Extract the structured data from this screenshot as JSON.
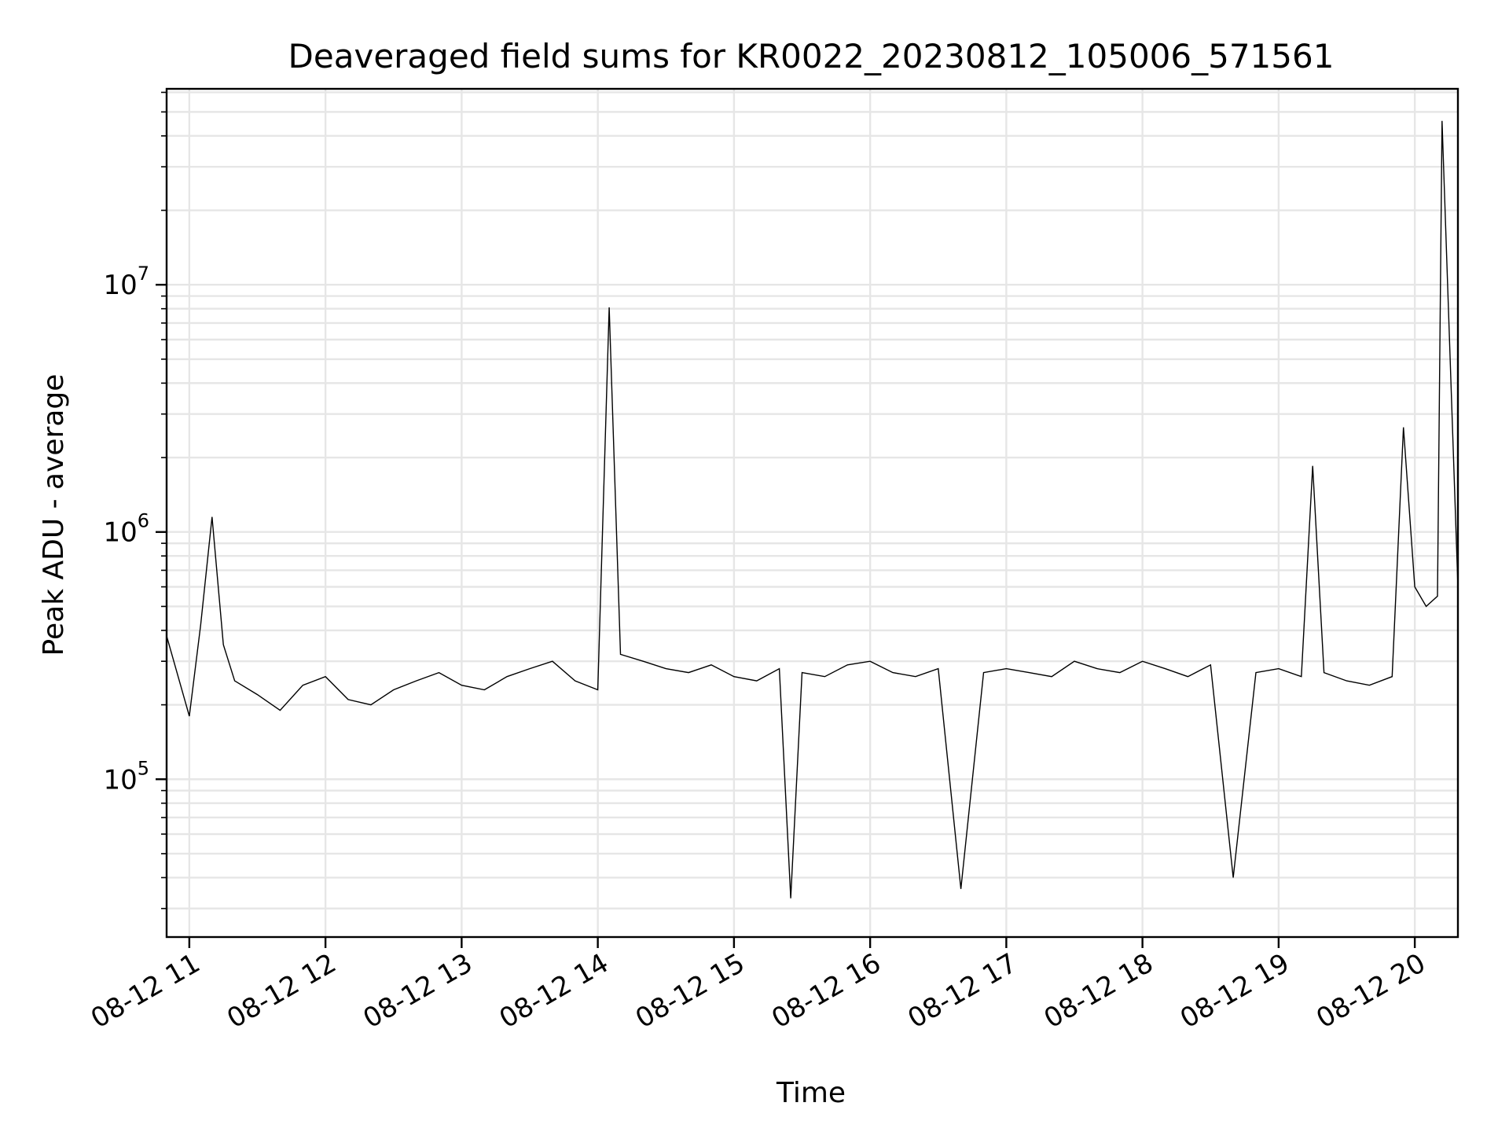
{
  "chart_data": {
    "type": "line",
    "title": "Deaveraged field sums for KR0022_20230812_105006_571561",
    "xlabel": "Time",
    "ylabel": "Peak ADU - average",
    "yscale": "log",
    "ylim": [
      23000,
      62000000
    ],
    "xlim": [
      "2023-08-12 10:50",
      "2023-08-12 20:19"
    ],
    "grid": true,
    "line_color": "#000000",
    "x_ticks": [
      {
        "label": "08-12 11",
        "time": "2023-08-12 11:00"
      },
      {
        "label": "08-12 12",
        "time": "2023-08-12 12:00"
      },
      {
        "label": "08-12 13",
        "time": "2023-08-12 13:00"
      },
      {
        "label": "08-12 14",
        "time": "2023-08-12 14:00"
      },
      {
        "label": "08-12 15",
        "time": "2023-08-12 15:00"
      },
      {
        "label": "08-12 16",
        "time": "2023-08-12 16:00"
      },
      {
        "label": "08-12 17",
        "time": "2023-08-12 17:00"
      },
      {
        "label": "08-12 18",
        "time": "2023-08-12 18:00"
      },
      {
        "label": "08-12 19",
        "time": "2023-08-12 19:00"
      },
      {
        "label": "08-12 20",
        "time": "2023-08-12 20:00"
      }
    ],
    "y_ticks": [
      {
        "base": "10",
        "exp": "5",
        "value": 100000
      },
      {
        "base": "10",
        "exp": "6",
        "value": 1000000
      },
      {
        "base": "10",
        "exp": "7",
        "value": 10000000
      }
    ],
    "series": [
      {
        "x": [
          "2023-08-12 10:50",
          "2023-08-12 11:00",
          "2023-08-12 11:05",
          "2023-08-12 11:10",
          "2023-08-12 11:15",
          "2023-08-12 11:20",
          "2023-08-12 11:30",
          "2023-08-12 11:40",
          "2023-08-12 11:50",
          "2023-08-12 12:00",
          "2023-08-12 12:10",
          "2023-08-12 12:20",
          "2023-08-12 12:30",
          "2023-08-12 12:40",
          "2023-08-12 12:50",
          "2023-08-12 13:00",
          "2023-08-12 13:10",
          "2023-08-12 13:20",
          "2023-08-12 13:30",
          "2023-08-12 13:40",
          "2023-08-12 13:50",
          "2023-08-12 14:00",
          "2023-08-12 14:05",
          "2023-08-12 14:10",
          "2023-08-12 14:20",
          "2023-08-12 14:30",
          "2023-08-12 14:40",
          "2023-08-12 14:50",
          "2023-08-12 15:00",
          "2023-08-12 15:10",
          "2023-08-12 15:20",
          "2023-08-12 15:25",
          "2023-08-12 15:30",
          "2023-08-12 15:40",
          "2023-08-12 15:50",
          "2023-08-12 16:00",
          "2023-08-12 16:10",
          "2023-08-12 16:20",
          "2023-08-12 16:30",
          "2023-08-12 16:40",
          "2023-08-12 16:50",
          "2023-08-12 17:00",
          "2023-08-12 17:10",
          "2023-08-12 17:20",
          "2023-08-12 17:30",
          "2023-08-12 17:40",
          "2023-08-12 17:50",
          "2023-08-12 18:00",
          "2023-08-12 18:10",
          "2023-08-12 18:20",
          "2023-08-12 18:30",
          "2023-08-12 18:40",
          "2023-08-12 18:50",
          "2023-08-12 19:00",
          "2023-08-12 19:10",
          "2023-08-12 19:15",
          "2023-08-12 19:20",
          "2023-08-12 19:30",
          "2023-08-12 19:40",
          "2023-08-12 19:50",
          "2023-08-12 19:55",
          "2023-08-12 20:00",
          "2023-08-12 20:05",
          "2023-08-12 20:10",
          "2023-08-12 20:12",
          "2023-08-12 20:19"
        ],
        "y": [
          380000,
          180000,
          420000,
          1150000,
          350000,
          250000,
          220000,
          190000,
          240000,
          260000,
          210000,
          200000,
          230000,
          250000,
          270000,
          240000,
          230000,
          260000,
          280000,
          300000,
          250000,
          230000,
          8100000,
          320000,
          300000,
          280000,
          270000,
          290000,
          260000,
          250000,
          280000,
          33000,
          270000,
          260000,
          290000,
          300000,
          270000,
          260000,
          280000,
          36000,
          270000,
          280000,
          270000,
          260000,
          300000,
          280000,
          270000,
          300000,
          280000,
          260000,
          290000,
          40000,
          270000,
          280000,
          260000,
          1850000,
          270000,
          250000,
          240000,
          260000,
          2650000,
          600000,
          500000,
          550000,
          46000000,
          600000
        ]
      }
    ]
  }
}
